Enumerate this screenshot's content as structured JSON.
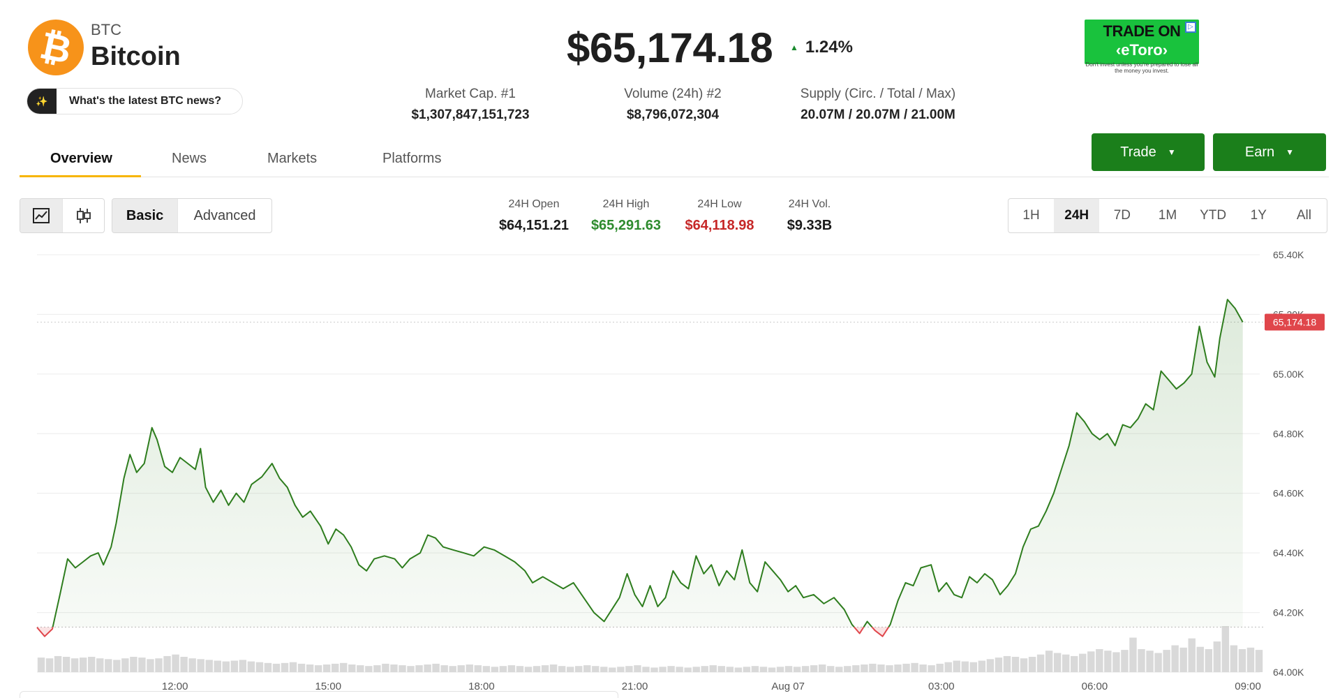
{
  "coin": {
    "symbol": "BTC",
    "name": "Bitcoin",
    "logo_glyph": "₿",
    "news_prompt": "What's the latest BTC news?",
    "news_icon": "sparkle-icon"
  },
  "price": {
    "value": "$65,174.18",
    "change": "1.24%",
    "direction": "up"
  },
  "stats": [
    {
      "label": "Market Cap. #1",
      "value": "$1,307,847,151,723"
    },
    {
      "label": "Volume (24h) #2",
      "value": "$8,796,072,304"
    },
    {
      "label": "Supply (Circ. / Total / Max)",
      "value": "20.07M / 20.07M / 21.00M"
    }
  ],
  "ad": {
    "line1": "TRADE ON",
    "line2": "‹eToro›",
    "disclaimer": "Don't invest unless you're prepared to lose all the money you invest."
  },
  "tabs": [
    {
      "label": "Overview",
      "active": true
    },
    {
      "label": "News",
      "active": false
    },
    {
      "label": "Markets",
      "active": false
    },
    {
      "label": "Platforms",
      "active": false
    }
  ],
  "actions": {
    "trade_label": "Trade",
    "earn_label": "Earn",
    "color": "#1b7f1b"
  },
  "chart_controls": {
    "chart_types": [
      "line-chart-icon",
      "candlestick-icon"
    ],
    "modes": [
      {
        "label": "Basic",
        "active": true
      },
      {
        "label": "Advanced",
        "active": false
      }
    ],
    "ranges": [
      {
        "label": "1H",
        "active": false
      },
      {
        "label": "24H",
        "active": true
      },
      {
        "label": "7D",
        "active": false
      },
      {
        "label": "1M",
        "active": false
      },
      {
        "label": "YTD",
        "active": false
      },
      {
        "label": "1Y",
        "active": false
      },
      {
        "label": "All",
        "active": false
      }
    ]
  },
  "header_stats": [
    {
      "label": "24H Open",
      "value": "$64,151.21",
      "color": "#1a1a1a"
    },
    {
      "label": "24H High",
      "value": "$65,291.63",
      "color": "#2e8b2e"
    },
    {
      "label": "24H Low",
      "value": "$64,118.98",
      "color": "#c62828"
    },
    {
      "label": "24H Vol.",
      "value": "$9.33B",
      "color": "#1a1a1a"
    }
  ],
  "chart_data": {
    "type": "line",
    "y_ticks": [
      "65.40K",
      "65.20K",
      "65.00K",
      "64.80K",
      "64.60K",
      "64.40K",
      "64.20K",
      "64.00K"
    ],
    "y_tick_values": [
      65400,
      65200,
      65000,
      64800,
      64600,
      64400,
      64200,
      64000
    ],
    "ylim": [
      64000,
      65400
    ],
    "x_ticks": [
      "12:00",
      "15:00",
      "18:00",
      "21:00",
      "Aug 07",
      "03:00",
      "06:00",
      "09:00"
    ],
    "x_tick_values": [
      2.7,
      5.7,
      8.7,
      11.7,
      14.7,
      17.7,
      20.7,
      23.7
    ],
    "xlim": [
      0,
      24
    ],
    "baseline": 64151.21,
    "current_label": "65,174.18",
    "current_value": 65174.18,
    "up_color": "#2e7d1e",
    "down_color": "#e0464b",
    "points": [
      [
        0.0,
        64150
      ],
      [
        0.15,
        64120
      ],
      [
        0.3,
        64145
      ],
      [
        0.45,
        64260
      ],
      [
        0.6,
        64380
      ],
      [
        0.75,
        64350
      ],
      [
        0.9,
        64370
      ],
      [
        1.05,
        64390
      ],
      [
        1.2,
        64400
      ],
      [
        1.3,
        64360
      ],
      [
        1.45,
        64420
      ],
      [
        1.55,
        64500
      ],
      [
        1.7,
        64650
      ],
      [
        1.82,
        64730
      ],
      [
        1.95,
        64670
      ],
      [
        2.1,
        64700
      ],
      [
        2.25,
        64820
      ],
      [
        2.35,
        64780
      ],
      [
        2.5,
        64690
      ],
      [
        2.65,
        64670
      ],
      [
        2.8,
        64720
      ],
      [
        2.95,
        64700
      ],
      [
        3.1,
        64680
      ],
      [
        3.2,
        64750
      ],
      [
        3.3,
        64620
      ],
      [
        3.45,
        64570
      ],
      [
        3.6,
        64610
      ],
      [
        3.75,
        64560
      ],
      [
        3.9,
        64600
      ],
      [
        4.05,
        64570
      ],
      [
        4.2,
        64630
      ],
      [
        4.4,
        64655
      ],
      [
        4.6,
        64700
      ],
      [
        4.75,
        64650
      ],
      [
        4.9,
        64620
      ],
      [
        5.05,
        64560
      ],
      [
        5.2,
        64520
      ],
      [
        5.35,
        64540
      ],
      [
        5.55,
        64490
      ],
      [
        5.7,
        64430
      ],
      [
        5.85,
        64480
      ],
      [
        6.0,
        64460
      ],
      [
        6.15,
        64420
      ],
      [
        6.3,
        64360
      ],
      [
        6.45,
        64340
      ],
      [
        6.6,
        64380
      ],
      [
        6.8,
        64390
      ],
      [
        7.0,
        64380
      ],
      [
        7.15,
        64350
      ],
      [
        7.3,
        64380
      ],
      [
        7.5,
        64400
      ],
      [
        7.65,
        64460
      ],
      [
        7.8,
        64450
      ],
      [
        7.95,
        64420
      ],
      [
        8.15,
        64410
      ],
      [
        8.35,
        64400
      ],
      [
        8.55,
        64390
      ],
      [
        8.75,
        64420
      ],
      [
        8.95,
        64410
      ],
      [
        9.15,
        64390
      ],
      [
        9.35,
        64370
      ],
      [
        9.55,
        64340
      ],
      [
        9.7,
        64300
      ],
      [
        9.9,
        64320
      ],
      [
        10.1,
        64300
      ],
      [
        10.3,
        64280
      ],
      [
        10.5,
        64300
      ],
      [
        10.7,
        64250
      ],
      [
        10.9,
        64200
      ],
      [
        11.1,
        64170
      ],
      [
        11.25,
        64210
      ],
      [
        11.4,
        64250
      ],
      [
        11.55,
        64330
      ],
      [
        11.7,
        64260
      ],
      [
        11.85,
        64220
      ],
      [
        12.0,
        64290
      ],
      [
        12.15,
        64220
      ],
      [
        12.3,
        64250
      ],
      [
        12.45,
        64340
      ],
      [
        12.6,
        64300
      ],
      [
        12.75,
        64280
      ],
      [
        12.9,
        64390
      ],
      [
        13.05,
        64330
      ],
      [
        13.2,
        64360
      ],
      [
        13.35,
        64290
      ],
      [
        13.5,
        64340
      ],
      [
        13.65,
        64310
      ],
      [
        13.8,
        64410
      ],
      [
        13.95,
        64300
      ],
      [
        14.1,
        64270
      ],
      [
        14.25,
        64370
      ],
      [
        14.4,
        64340
      ],
      [
        14.55,
        64310
      ],
      [
        14.7,
        64270
      ],
      [
        14.85,
        64290
      ],
      [
        15.0,
        64250
      ],
      [
        15.2,
        64260
      ],
      [
        15.4,
        64230
      ],
      [
        15.6,
        64250
      ],
      [
        15.8,
        64210
      ],
      [
        15.95,
        64160
      ],
      [
        16.1,
        64130
      ],
      [
        16.25,
        64170
      ],
      [
        16.4,
        64140
      ],
      [
        16.55,
        64120
      ],
      [
        16.7,
        64160
      ],
      [
        16.85,
        64240
      ],
      [
        17.0,
        64300
      ],
      [
        17.15,
        64290
      ],
      [
        17.3,
        64350
      ],
      [
        17.5,
        64360
      ],
      [
        17.65,
        64270
      ],
      [
        17.8,
        64300
      ],
      [
        17.95,
        64260
      ],
      [
        18.1,
        64250
      ],
      [
        18.25,
        64320
      ],
      [
        18.4,
        64300
      ],
      [
        18.55,
        64330
      ],
      [
        18.7,
        64310
      ],
      [
        18.85,
        64260
      ],
      [
        19.0,
        64290
      ],
      [
        19.15,
        64330
      ],
      [
        19.3,
        64420
      ],
      [
        19.45,
        64480
      ],
      [
        19.6,
        64490
      ],
      [
        19.75,
        64540
      ],
      [
        19.9,
        64600
      ],
      [
        20.05,
        64680
      ],
      [
        20.2,
        64760
      ],
      [
        20.35,
        64870
      ],
      [
        20.5,
        64840
      ],
      [
        20.65,
        64800
      ],
      [
        20.8,
        64780
      ],
      [
        20.95,
        64800
      ],
      [
        21.1,
        64760
      ],
      [
        21.25,
        64830
      ],
      [
        21.4,
        64820
      ],
      [
        21.55,
        64850
      ],
      [
        21.7,
        64900
      ],
      [
        21.85,
        64880
      ],
      [
        22.0,
        65010
      ],
      [
        22.15,
        64980
      ],
      [
        22.3,
        64950
      ],
      [
        22.45,
        64970
      ],
      [
        22.6,
        65000
      ],
      [
        22.75,
        65160
      ],
      [
        22.9,
        65040
      ],
      [
        23.05,
        64990
      ],
      [
        23.15,
        65120
      ],
      [
        23.3,
        65250
      ],
      [
        23.45,
        65220
      ],
      [
        23.6,
        65174
      ]
    ],
    "volume": [
      38,
      36,
      42,
      40,
      36,
      38,
      40,
      36,
      34,
      32,
      36,
      40,
      38,
      34,
      36,
      42,
      46,
      40,
      36,
      34,
      32,
      30,
      28,
      30,
      32,
      28,
      26,
      24,
      22,
      24,
      26,
      22,
      20,
      18,
      20,
      22,
      24,
      20,
      18,
      16,
      18,
      22,
      20,
      18,
      16,
      18,
      20,
      22,
      18,
      16,
      18,
      20,
      18,
      16,
      14,
      16,
      18,
      16,
      14,
      16,
      18,
      20,
      16,
      14,
      16,
      18,
      16,
      14,
      12,
      14,
      16,
      18,
      14,
      12,
      14,
      16,
      14,
      12,
      14,
      16,
      18,
      16,
      14,
      12,
      14,
      16,
      14,
      12,
      14,
      16,
      14,
      16,
      18,
      20,
      16,
      14,
      16,
      18,
      20,
      22,
      20,
      18,
      20,
      22,
      24,
      20,
      18,
      22,
      26,
      30,
      28,
      26,
      30,
      34,
      38,
      42,
      40,
      36,
      40,
      46,
      56,
      50,
      46,
      42,
      48,
      54,
      60,
      56,
      52,
      58,
      90,
      60,
      56,
      50,
      58,
      70,
      64,
      88,
      66,
      60,
      80,
      120,
      70,
      60,
      64,
      58
    ]
  }
}
